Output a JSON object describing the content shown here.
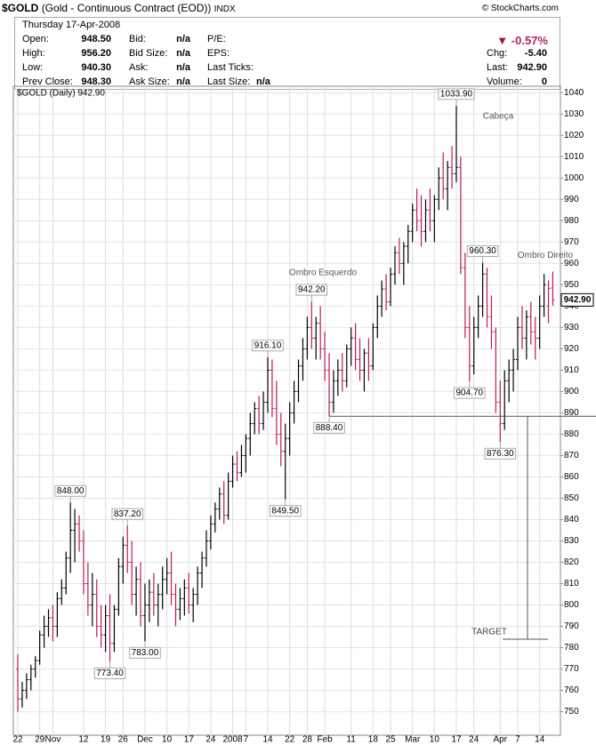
{
  "header": {
    "symbol": "$GOLD",
    "name": "(Gold - Continuous Contract (EOD))",
    "exchange": "INDX",
    "copyright": "© StockCharts.com",
    "date": "Thursday  17-Apr-2008",
    "col1": [
      {
        "label": "Open:",
        "value": "948.50"
      },
      {
        "label": "High:",
        "value": "956.20"
      },
      {
        "label": "Low:",
        "value": "940.30"
      },
      {
        "label": "Prev Close:",
        "value": "948.30"
      }
    ],
    "col2": [
      {
        "label": "Bid:",
        "value": "n/a"
      },
      {
        "label": "Bid Size:",
        "value": "n/a"
      },
      {
        "label": "Ask:",
        "value": "n/a"
      },
      {
        "label": "Ask Size:",
        "value": "n/a"
      }
    ],
    "col3": [
      {
        "label": "P/E:"
      },
      {
        "label": "EPS:"
      },
      {
        "label": "Last Ticks:"
      },
      {
        "label": "Last Size:",
        "value": "n/a"
      }
    ],
    "change_pct": "-0.57%",
    "col4": [
      {
        "label": "Chg:",
        "value": "-5.40"
      },
      {
        "label": "Last:",
        "value": "942.90"
      },
      {
        "label": "Volume:",
        "value": "0"
      }
    ]
  },
  "chart_data": {
    "type": "ohlc",
    "legend": "$GOLD (Daily) 942.90",
    "up_color": "#000000",
    "down_color": "#c0185a",
    "grid": true,
    "ylim": [
      739,
      1043
    ],
    "yticks": [
      750,
      760,
      770,
      780,
      790,
      800,
      810,
      820,
      830,
      840,
      850,
      860,
      870,
      880,
      890,
      900,
      910,
      920,
      930,
      940,
      950,
      960,
      970,
      980,
      990,
      1000,
      1010,
      1020,
      1030,
      1040
    ],
    "categories": [
      "22",
      null,
      null,
      null,
      null,
      "29",
      null,
      null,
      "Nov",
      null,
      null,
      null,
      null,
      null,
      null,
      "12",
      null,
      null,
      null,
      null,
      "19",
      null,
      null,
      null,
      "26",
      null,
      null,
      null,
      null,
      "Dec",
      null,
      null,
      null,
      null,
      "10",
      null,
      null,
      null,
      null,
      "17",
      null,
      null,
      null,
      null,
      "24",
      null,
      null,
      null,
      null,
      "2008",
      null,
      null,
      "7",
      null,
      null,
      null,
      null,
      "14",
      null,
      null,
      null,
      null,
      "22",
      null,
      null,
      null,
      "28",
      null,
      null,
      null,
      "Feb",
      null,
      null,
      null,
      null,
      null,
      "11",
      null,
      null,
      null,
      null,
      "18",
      null,
      null,
      null,
      "25",
      null,
      null,
      null,
      null,
      "Mar",
      null,
      null,
      null,
      null,
      "10",
      null,
      null,
      null,
      null,
      "17",
      null,
      null,
      null,
      "24",
      null,
      null,
      null,
      null,
      null,
      "Apr",
      null,
      null,
      null,
      "7",
      null,
      null,
      null,
      null,
      "14",
      null,
      null,
      null
    ],
    "open": [
      770,
      756,
      760,
      765,
      770,
      774,
      786,
      790,
      794,
      790,
      803,
      808,
      822,
      835,
      838,
      830,
      810,
      800,
      805,
      790,
      786,
      795,
      782,
      798,
      818,
      828,
      820,
      805,
      812,
      795,
      800,
      806,
      800,
      805,
      812,
      815,
      805,
      798,
      803,
      808,
      800,
      805,
      815,
      822,
      830,
      838,
      845,
      852,
      842,
      858,
      866,
      862,
      870,
      878,
      885,
      892,
      885,
      895,
      910,
      892,
      880,
      872,
      878,
      890,
      900,
      912,
      920,
      930,
      925,
      932,
      920,
      910,
      895,
      905,
      910,
      905,
      920,
      925,
      915,
      910,
      918,
      912,
      930,
      940,
      948,
      942,
      955,
      965,
      960,
      968,
      975,
      985,
      980,
      975,
      985,
      980,
      990,
      1000,
      995,
      1005,
      1002,
      1005,
      958,
      930,
      912,
      930,
      940,
      955,
      935,
      928,
      895,
      885,
      905,
      910,
      915,
      930,
      925,
      935,
      928,
      925,
      940,
      940,
      948.5
    ],
    "high": [
      777,
      764,
      768,
      772,
      776,
      788,
      795,
      798,
      800,
      806,
      812,
      825,
      848,
      845,
      842,
      835,
      820,
      815,
      812,
      800,
      800,
      805,
      800,
      822,
      832,
      837.2,
      830,
      818,
      820,
      810,
      812,
      815,
      810,
      818,
      822,
      825,
      810,
      808,
      812,
      815,
      808,
      818,
      825,
      835,
      842,
      848,
      855,
      858,
      862,
      870,
      872,
      875,
      880,
      890,
      895,
      898,
      900,
      916.1,
      915,
      905,
      890,
      885,
      895,
      905,
      915,
      925,
      935,
      942.2,
      935,
      940,
      928,
      918,
      910,
      915,
      918,
      922,
      930,
      932,
      925,
      920,
      925,
      932,
      945,
      952,
      955,
      958,
      968,
      972,
      970,
      978,
      988,
      995,
      992,
      990,
      995,
      992,
      1005,
      1012,
      1008,
      1015,
      1033.9,
      1010,
      965,
      940,
      935,
      945,
      960.3,
      958,
      945,
      930,
      905,
      910,
      915,
      920,
      935,
      940,
      938,
      942,
      935,
      945,
      955,
      952,
      956.2
    ],
    "low": [
      750,
      752,
      756,
      760,
      766,
      772,
      780,
      785,
      783,
      785,
      800,
      805,
      815,
      820,
      825,
      805,
      795,
      790,
      785,
      780,
      778,
      773.4,
      778,
      795,
      810,
      815,
      800,
      795,
      790,
      783,
      792,
      795,
      790,
      798,
      805,
      800,
      790,
      793,
      795,
      796,
      792,
      800,
      808,
      818,
      826,
      834,
      840,
      838,
      840,
      855,
      858,
      860,
      862,
      870,
      880,
      880,
      882,
      890,
      888,
      875,
      865,
      849.5,
      870,
      885,
      895,
      905,
      915,
      920,
      915,
      915,
      905,
      888.4,
      890,
      898,
      900,
      902,
      912,
      910,
      905,
      900,
      905,
      910,
      925,
      935,
      938,
      940,
      950,
      955,
      950,
      960,
      970,
      975,
      968,
      970,
      975,
      970,
      985,
      990,
      985,
      995,
      998,
      955,
      925,
      904.7,
      908,
      925,
      935,
      930,
      920,
      890,
      876.3,
      882,
      895,
      900,
      910,
      920,
      915,
      922,
      915,
      920,
      935,
      932,
      940.3
    ],
    "close": [
      756,
      760,
      765,
      770,
      774,
      786,
      790,
      794,
      790,
      803,
      808,
      822,
      835,
      838,
      830,
      810,
      800,
      805,
      790,
      786,
      795,
      782,
      798,
      818,
      828,
      820,
      805,
      812,
      795,
      800,
      806,
      800,
      805,
      812,
      815,
      805,
      798,
      803,
      808,
      800,
      805,
      815,
      822,
      830,
      838,
      845,
      852,
      842,
      858,
      866,
      862,
      870,
      878,
      885,
      892,
      885,
      895,
      910,
      892,
      880,
      872,
      878,
      890,
      900,
      912,
      920,
      930,
      925,
      932,
      920,
      910,
      895,
      905,
      910,
      905,
      920,
      925,
      915,
      910,
      918,
      912,
      930,
      940,
      948,
      942,
      955,
      965,
      960,
      968,
      975,
      985,
      980,
      975,
      985,
      980,
      990,
      1000,
      995,
      1005,
      1002,
      1005,
      958,
      930,
      912,
      930,
      940,
      955,
      935,
      928,
      895,
      885,
      905,
      910,
      915,
      930,
      925,
      935,
      928,
      925,
      940,
      950,
      948.3,
      942.9
    ],
    "high_labels": {
      "12": "848.00",
      "25": "837.20",
      "57": "916.10",
      "67": "942.20",
      "100": "1033.90",
      "106": "960.30"
    },
    "low_labels": {
      "21": "773.40",
      "29": "783.00",
      "61": "849.50",
      "71": "888.40",
      "103": "904.70",
      "110": "876.30"
    },
    "last_label": "942.90",
    "annotations": [
      {
        "text": "Cabeça"
      },
      {
        "text": "Ombro Esquerdo"
      },
      {
        "text": "Ombro Direito"
      }
    ],
    "target": {
      "label": "TARGET",
      "value": 784
    }
  }
}
